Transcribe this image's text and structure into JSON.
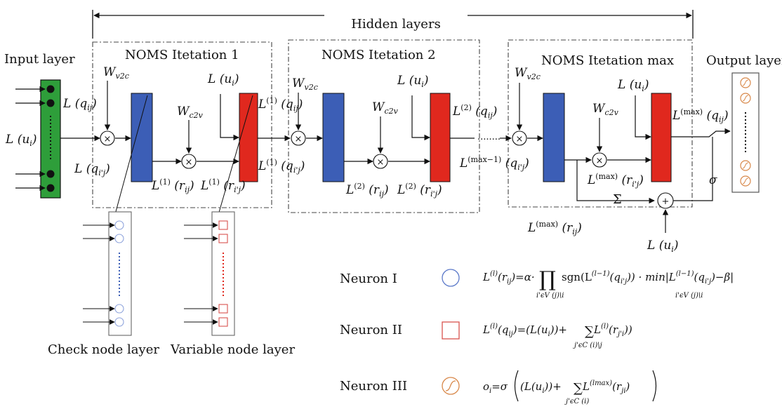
{
  "title": "Hidden layers",
  "layers": {
    "input": "Input layer",
    "output": "Output layer",
    "check": "Check node layer",
    "variable": "Variable node layer"
  },
  "iterations": [
    "NOMS   Itetation 1",
    "NOMS   Itetation 2",
    "NOMS   Itetation max"
  ],
  "weights": {
    "v2c": [
      "W",
      "v2c"
    ],
    "c2v": [
      "W",
      "c2v"
    ]
  },
  "ops": {
    "multiply": "×",
    "plus": "+",
    "sum": "Σ",
    "sigma": "σ",
    "dots": "........"
  },
  "labels": {
    "L": "L",
    "u_i": "(u",
    "close": ")",
    "q_ij": "(q",
    "r_ij": "(r",
    "ij": "ij",
    "i'j": "i'j",
    "i": "i",
    "sup1": "(1)",
    "sup2": "(2)",
    "supmax": "(max)",
    "supmaxm1": "(max−1)"
  },
  "neurons": [
    {
      "name": "Neuron I",
      "shape": "circle",
      "color": "#3b5bb5"
    },
    {
      "name": "Neuron II",
      "shape": "square",
      "color": "#d9534f"
    },
    {
      "name": "Neuron III",
      "shape": "sigmoid",
      "color": "#d8884a"
    }
  ],
  "formulas": {
    "f1": {
      "lhs": "L",
      "lhs_sup": "(l)",
      "lhs_arg": "(r",
      "lhs_sub": "ij",
      "body1": ")=α·",
      "prod": "∏",
      "body2": "sgn(L",
      "sup2": "(l−1)",
      "body3": "(q",
      "sub3": "i'j",
      "body4": ")) · min|L",
      "sup4": "(l−1)",
      "body5": "(q",
      "sub5": "i'j",
      "body6": ")−β|",
      "prod_under": "i'ϵV (j)\\i",
      "min_under": "i'ϵV (j)\\i"
    },
    "f2": {
      "lhs": "L",
      "lhs_sup": "(l)",
      "lhs_arg": "(q",
      "lhs_sub": "ij",
      "body1": ")=(L(u",
      "sub1": "i",
      "body2": "))+",
      "sum": "∑",
      "body3": " L",
      "sup3": "(l)",
      "body4": "(r",
      "sub4": "j'i",
      "body5": "))",
      "sum_under": "j'ϵC (i)\\j"
    },
    "f3": {
      "lhs": "o",
      "lhs_sub": "i",
      "body1": "=σ",
      "body2": "(L(u",
      "sub2": "i",
      "body3": "))+",
      "sum": "∑",
      "body4": " L",
      "sup4": "(lmax)",
      "body5": "(r",
      "sub5": "ji",
      "body6": ")",
      "sum_under": "j'ϵC (i)"
    }
  },
  "colors": {
    "input_green": "#2e9e3a",
    "check_blue": "#3c5eb6",
    "variable_red": "#e0281e",
    "neuron_circle": "#5b79c9",
    "neuron_square": "#d9534f",
    "neuron_sigmoid": "#d8884a"
  }
}
